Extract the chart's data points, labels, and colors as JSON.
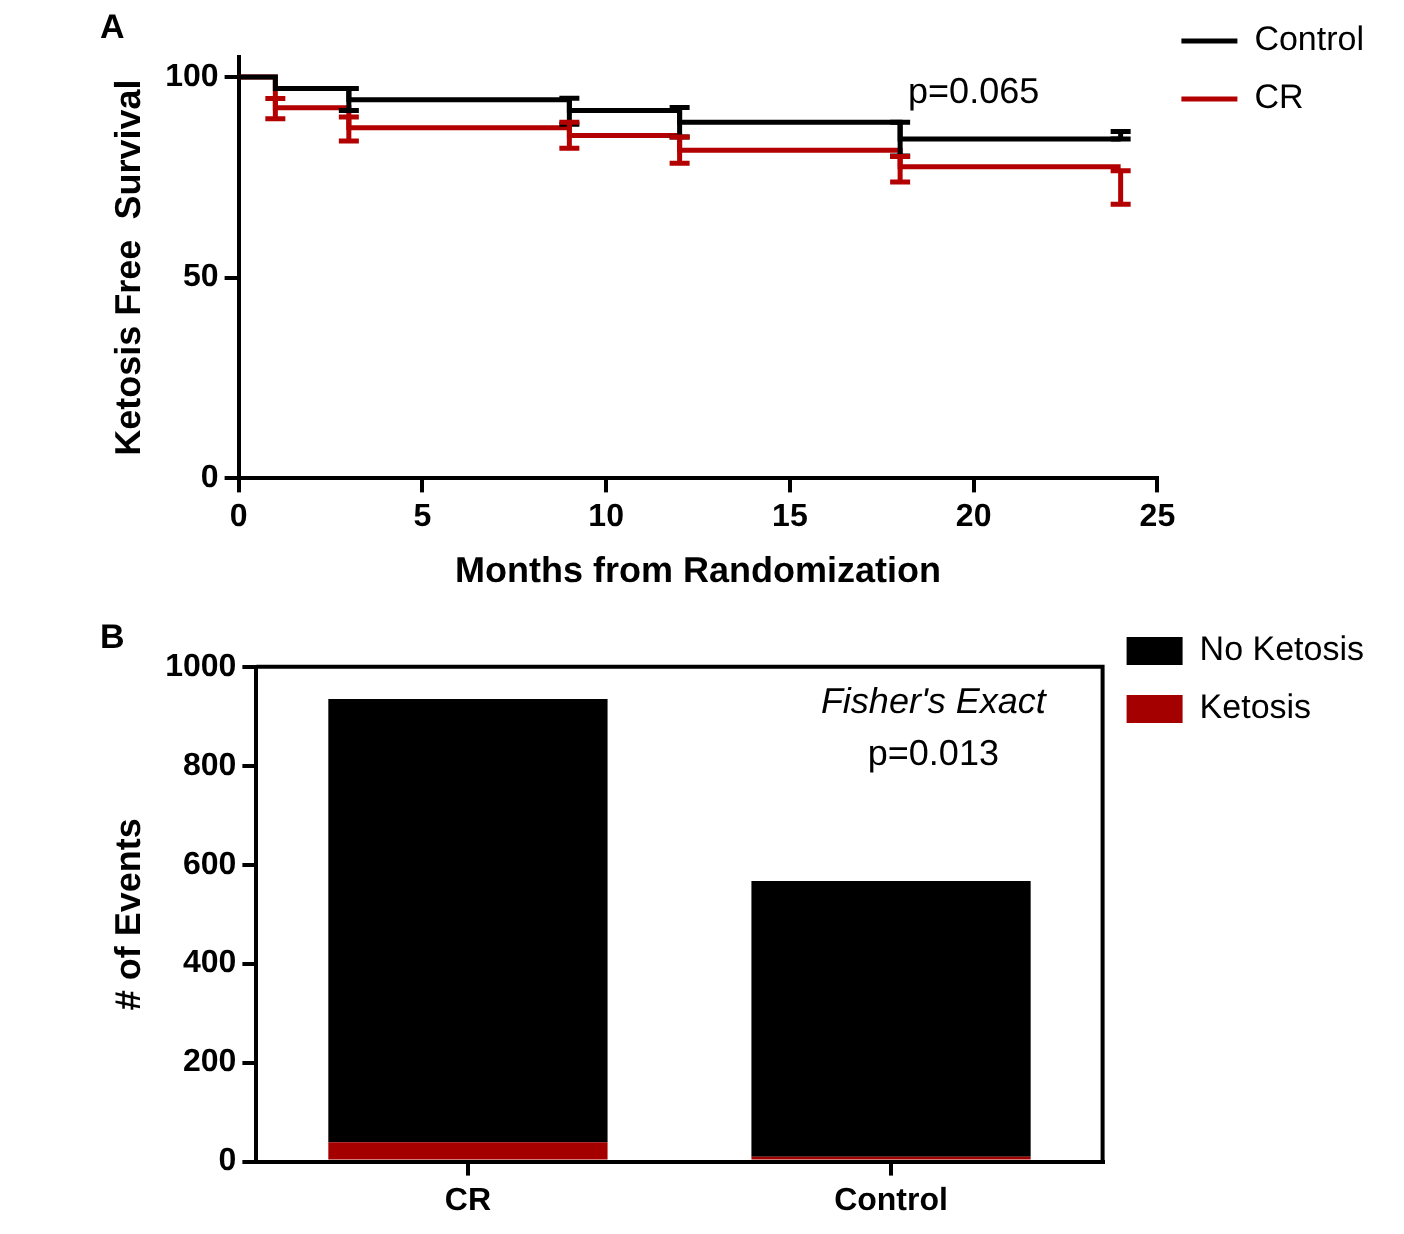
{
  "chart_data": [
    {
      "type": "step",
      "title": "A",
      "xlabel": "Months from Randomization",
      "ylabel": "Ketosis Free  Survival",
      "x": [
        0,
        1,
        3,
        9,
        12,
        18,
        24
      ],
      "series": [
        {
          "name": "Control",
          "color": "#000000",
          "values": [
            100,
            97.1,
            94.3,
            91.6,
            88.7,
            84.5,
            84.5
          ],
          "errors": [
            null,
            null,
            [
              91.6,
              97.1
            ],
            [
              88.2,
              94.7
            ],
            [
              85,
              92.4
            ],
            [
              80.3,
              88.7
            ],
            [
              84.5,
              86.4
            ]
          ]
        },
        {
          "name": "CR",
          "color": "#b30000",
          "values": [
            100,
            92.3,
            87.3,
            85.4,
            81.7,
            77.6,
            77.6
          ],
          "errors": [
            null,
            [
              89.6,
              94.6
            ],
            [
              84,
              90
            ],
            [
              82.2,
              88.7
            ],
            [
              78.5,
              85
            ],
            [
              73.8,
              80.2
            ],
            [
              68.3,
              76.6
            ]
          ]
        }
      ],
      "xlim": [
        0,
        25
      ],
      "xticks": [
        0,
        5,
        10,
        15,
        20,
        25
      ],
      "ylim": [
        0,
        105
      ],
      "yticks": [
        0,
        50,
        100
      ],
      "annotations": [
        "p=0.065"
      ],
      "legend": "top right",
      "grid": false
    },
    {
      "type": "bar",
      "title": "B",
      "ylabel": "# of Events",
      "categories": [
        "CR",
        "Control"
      ],
      "stacked": true,
      "series": [
        {
          "name": "Ketosis",
          "color": "#a50000",
          "values": [
            39,
            10
          ]
        },
        {
          "name": "No Ketosis",
          "color": "#000000",
          "values": [
            896,
            557
          ]
        }
      ],
      "ylim": [
        0,
        1000
      ],
      "yticks": [
        0,
        200,
        400,
        600,
        800,
        1000
      ],
      "annotations": [
        "Fisher's Exact",
        "p=0.013"
      ],
      "legend": "top right",
      "grid": false
    }
  ]
}
